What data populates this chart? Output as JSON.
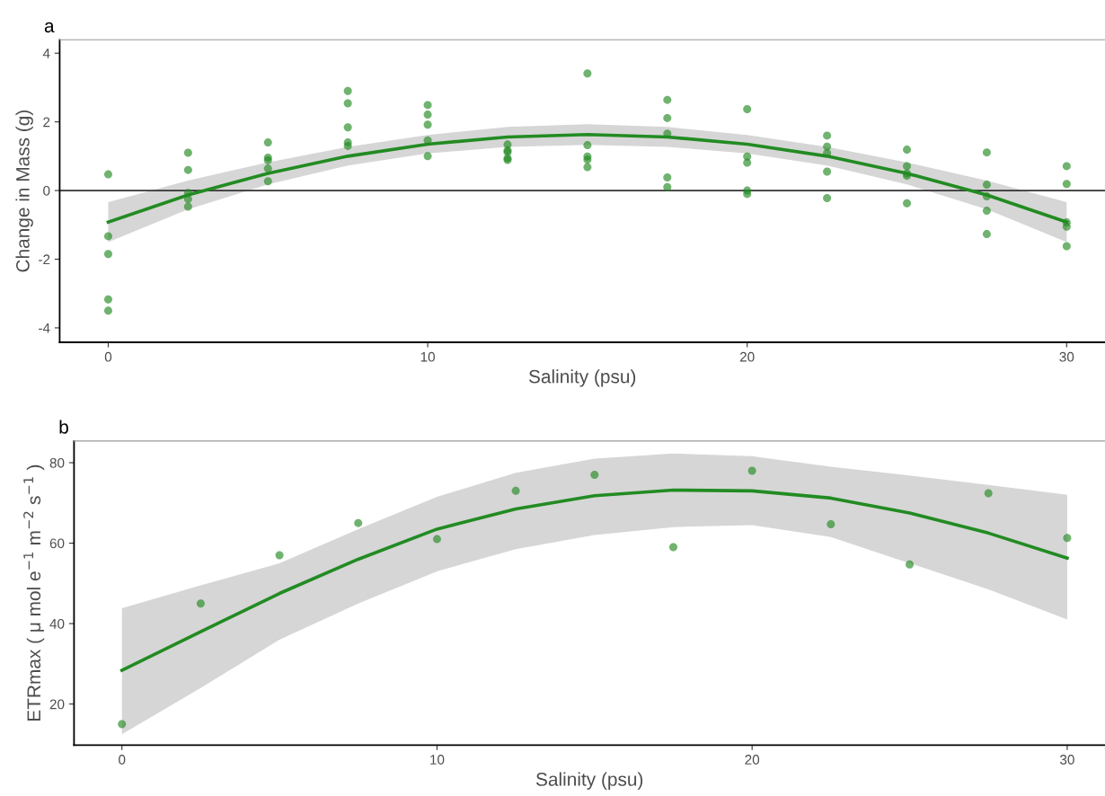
{
  "chart_data": [
    {
      "type": "scatter",
      "title": "a",
      "xlabel": "Salinity (psu)",
      "ylabel": "Change in Mass (g)",
      "xlim": [
        -1.52,
        31.2
      ],
      "ylim": [
        -4.42,
        4.39
      ],
      "xticks": [
        0,
        10,
        20,
        30
      ],
      "yticks": [
        -4,
        -2,
        0,
        2,
        4
      ],
      "grid": false,
      "legend": false,
      "marker": "circle",
      "ref_lines": [
        {
          "axis": "y",
          "value": 0,
          "color": "#333333",
          "line_style": "solid"
        }
      ],
      "series": [
        {
          "color": "#228b22",
          "x": [
            0,
            0,
            0,
            0,
            0,
            2.5,
            2.5,
            2.5,
            2.5,
            2.5,
            5,
            5,
            5,
            5,
            5,
            7.5,
            7.5,
            7.5,
            7.5,
            7.5,
            10,
            10,
            10,
            10,
            10,
            12.5,
            12.5,
            12.5,
            12.5,
            12.5,
            15,
            15,
            15,
            15,
            15,
            17.5,
            17.5,
            17.5,
            17.5,
            17.5,
            20,
            20,
            20,
            20,
            20,
            22.5,
            22.5,
            22.5,
            22.5,
            22.5,
            25,
            25,
            25,
            25,
            25,
            27.5,
            27.5,
            27.5,
            27.5,
            27.5,
            30,
            30,
            30,
            30,
            30
          ],
          "values": [
            0.47,
            -1.33,
            -1.85,
            -3.17,
            -3.5,
            1.1,
            0.6,
            -0.07,
            -0.25,
            -0.47,
            1.4,
            0.96,
            0.88,
            0.64,
            0.27,
            2.9,
            2.54,
            1.84,
            1.4,
            1.3,
            2.49,
            2.21,
            1.92,
            1.46,
            1.0,
            1.34,
            1.17,
            1.12,
            0.94,
            0.89,
            3.41,
            1.32,
            0.99,
            0.9,
            0.68,
            2.64,
            2.11,
            1.66,
            0.38,
            0.1,
            2.37,
            0.99,
            0.81,
            0.0,
            -0.1,
            1.6,
            1.28,
            1.09,
            0.55,
            -0.22,
            1.19,
            0.71,
            0.5,
            0.43,
            -0.37,
            1.11,
            0.17,
            -0.17,
            -0.59,
            -1.27,
            0.71,
            0.19,
            -0.93,
            -1.05,
            -1.62
          ]
        },
        {
          "type": "line",
          "color": "#228b22",
          "line_style": "solid",
          "marker": "none",
          "x": [
            0,
            2.5,
            5,
            7.5,
            10,
            12.5,
            15,
            17.5,
            20,
            22.5,
            25,
            27.5,
            30
          ],
          "values": [
            -0.92,
            -0.13,
            0.5,
            1.0,
            1.35,
            1.56,
            1.63,
            1.56,
            1.35,
            1.0,
            0.5,
            -0.13,
            -0.92
          ],
          "lower": [
            -1.5,
            -0.55,
            0.18,
            0.73,
            1.08,
            1.27,
            1.33,
            1.27,
            1.08,
            0.73,
            0.18,
            -0.55,
            -1.5
          ],
          "upper": [
            -0.34,
            0.29,
            0.82,
            1.27,
            1.62,
            1.85,
            1.93,
            1.85,
            1.62,
            1.27,
            0.82,
            0.29,
            -0.34
          ]
        }
      ]
    },
    {
      "type": "scatter",
      "title": "b",
      "xlabel": "Salinity (psu)",
      "ylabel": "ETRmax ( μ mol e$^{−1}$ m$^{−2}$ s$^{−1}$ )",
      "xlim": [
        -1.52,
        31.2
      ],
      "ylim": [
        9.8,
        85.4
      ],
      "xticks": [
        0,
        10,
        20,
        30
      ],
      "yticks": [
        20,
        40,
        60,
        80
      ],
      "grid": false,
      "legend": false,
      "marker": "circle",
      "series": [
        {
          "color": "#228b22",
          "x": [
            0,
            2.5,
            5,
            7.5,
            10,
            12.5,
            15,
            17.5,
            20,
            22.5,
            25,
            27.5,
            30
          ],
          "values": [
            15,
            45,
            57,
            65,
            61,
            73,
            77,
            59,
            78,
            64.7,
            54.7,
            72.4,
            61.3
          ]
        },
        {
          "type": "line",
          "color": "#228b22",
          "line_style": "solid",
          "marker": "none",
          "x": [
            0,
            2.5,
            5,
            7.5,
            10,
            12.5,
            15,
            17.5,
            20,
            22.5,
            25,
            27.5,
            30
          ],
          "values": [
            28.4,
            38,
            47.5,
            56,
            63.5,
            68.5,
            71.8,
            73.2,
            73,
            71.2,
            67.5,
            62.5,
            56.3
          ],
          "lower": [
            12.5,
            24,
            36,
            45,
            53,
            58.5,
            62,
            64,
            64.5,
            61.5,
            55,
            48.5,
            41
          ],
          "upper": [
            43.8,
            49.5,
            55,
            63.5,
            71.5,
            77.5,
            81,
            82.3,
            81.6,
            79,
            76.8,
            74.5,
            72
          ]
        }
      ]
    }
  ]
}
